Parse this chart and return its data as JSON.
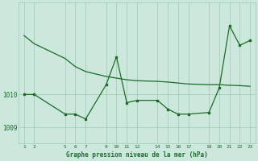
{
  "bg_color": "#cce8dc",
  "line_color": "#1a6b2a",
  "grid_color": "#a0c8b0",
  "title": "Graphe pression niveau de la mer (hPa)",
  "ylabel_ticks": [
    1009,
    1010
  ],
  "xlim": [
    0.5,
    23.5
  ],
  "ylim": [
    1008.5,
    1012.8
  ],
  "xtick_positions": [
    1,
    2,
    5,
    6,
    7,
    9,
    10,
    11,
    12,
    14,
    15,
    16,
    17,
    19,
    20,
    21,
    22,
    23
  ],
  "xtick_labels": [
    "1",
    "2",
    "5",
    "6",
    "7",
    "9",
    "10",
    "11",
    "12",
    "14",
    "15",
    "16",
    "17",
    "19",
    "20",
    "21",
    "22",
    "23"
  ],
  "line1_x": [
    1,
    2,
    5,
    6,
    7,
    9,
    10,
    11,
    12,
    14,
    15,
    16,
    17,
    19,
    20,
    21,
    22,
    23
  ],
  "line1_y": [
    1011.8,
    1011.55,
    1011.1,
    1010.85,
    1010.7,
    1010.55,
    1010.5,
    1010.45,
    1010.42,
    1010.4,
    1010.38,
    1010.35,
    1010.32,
    1010.3,
    1010.3,
    1010.28,
    1010.27,
    1010.25
  ],
  "line2_x": [
    1,
    2,
    5,
    6,
    7,
    9,
    10,
    11,
    12,
    14,
    15,
    16,
    17,
    19,
    20,
    21,
    22,
    23
  ],
  "line2_y": [
    1010.0,
    1010.0,
    1009.4,
    1009.4,
    1009.25,
    1010.3,
    1011.15,
    1009.75,
    1009.82,
    1009.82,
    1009.55,
    1009.4,
    1009.4,
    1009.45,
    1010.2,
    1012.1,
    1011.5,
    1011.65
  ]
}
